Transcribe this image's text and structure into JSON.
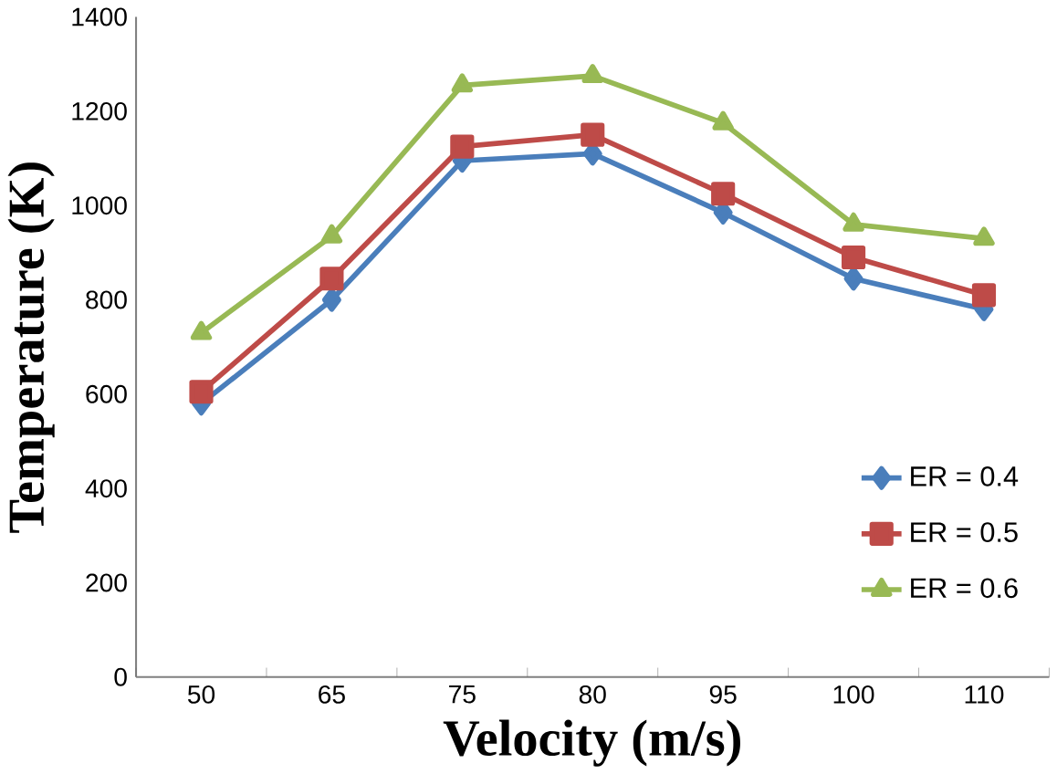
{
  "chart_data": {
    "type": "line",
    "xlabel": "Velocity (m/s)",
    "ylabel": "Temperature (K)",
    "categories": [
      "50",
      "65",
      "75",
      "80",
      "95",
      "100",
      "110"
    ],
    "series": [
      {
        "name": "ER = 0.4",
        "color": "#4a7ebb",
        "marker": "diamond",
        "values": [
          580,
          800,
          1095,
          1110,
          985,
          845,
          780
        ]
      },
      {
        "name": "ER = 0.5",
        "color": "#be4b48",
        "marker": "square",
        "values": [
          605,
          845,
          1125,
          1150,
          1025,
          890,
          810
        ]
      },
      {
        "name": "ER = 0.6",
        "color": "#98b954",
        "marker": "triangle",
        "values": [
          730,
          935,
          1255,
          1275,
          1175,
          960,
          930
        ]
      }
    ],
    "ylim": [
      0,
      1400
    ],
    "yticks": [
      0,
      200,
      400,
      600,
      800,
      1000,
      1200,
      1400
    ],
    "grid": false,
    "legend": "right"
  }
}
